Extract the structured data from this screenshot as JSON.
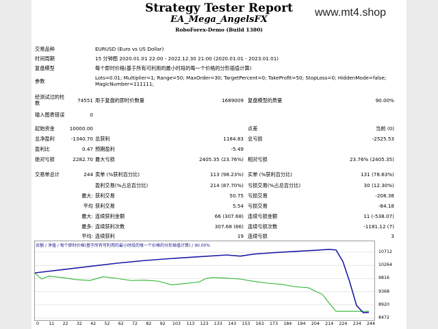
{
  "header": {
    "title": "Strategy Tester Report",
    "subtitle": "EA_Mega_AngelsFX",
    "build": "RoboForex-Demo (Build 1380)",
    "watermark": "www.mt4.shop"
  },
  "info": [
    {
      "label": "交易品种",
      "value": "EURUSD (Euro vs US Dollar)"
    },
    {
      "label": "时间周期",
      "value": "15 分钟图 2020.01.01 22:00 - 2022.12.30 21:00 (2020.01.01 - 2023.01.01)"
    },
    {
      "label": "复盘模型",
      "value": "每个即时价格(基于所有可利用的最小时段的每一个价格的分形插值计算)"
    },
    {
      "label": "参数",
      "value": "Lots=0.01; Multiplier=1; Range=50; MaxOrder=30; TargetPercent=0; TakeProfit=50; StopLoss=0; HiddenMode=false;",
      "value2": "MagicNumber=111111;"
    }
  ],
  "bars": {
    "label1": "经测试过的柱",
    "label2": "数",
    "bars_value": "74551",
    "ticks_label": "用于复盘的即时价数量",
    "ticks_value": "1689009",
    "quality_label": "复盘模型的质量",
    "quality_value": "90.00%",
    "mismatch_label": "输入图表错误",
    "mismatch_value": "0"
  },
  "stats": {
    "deposit_label": "起始资金",
    "deposit_value": "10000.00",
    "spread_label": "点差",
    "spread_value": "当前 (0)",
    "net_label": "总净盈利",
    "net_value": "-1340.70",
    "gross_profit_label": "总获利",
    "gross_profit_value": "1184.83",
    "gross_loss_label": "总亏损",
    "gross_loss_value": "-2525.53",
    "pf_label": "盈利比",
    "pf_value": "0.47",
    "ep_label": "预期盈利",
    "ep_value": "-5.49",
    "abs_dd_label": "绝对亏损",
    "abs_dd_value": "2282.70",
    "max_dd_label": "最大亏损",
    "max_dd_value": "2405.35 (23.76%)",
    "rel_dd_label": "相对亏损",
    "rel_dd_value": "23.76% (2405.35)"
  },
  "trades": {
    "total_label": "交易单总计",
    "total_value": "244",
    "short_label": "卖单 (%获利百分比)",
    "short_value": "113 (98.23%)",
    "long_label": "买单 (%获利百分比)",
    "long_value": "131 (78.63%)",
    "profit_trades_label": "盈利交易(%占总百分比)",
    "profit_trades_value": "214 (87.70%)",
    "loss_trades_label": "亏损交易(%占总百分比)",
    "loss_trades_value": "30 (12.30%)",
    "rows": [
      {
        "prefix": "最大:",
        "l1": "获利交易",
        "v1": "50.75",
        "l2": "亏损交易",
        "v2": "-208.38"
      },
      {
        "prefix": "平均",
        "l1": "获利交易",
        "v1": "5.54",
        "l2": "亏损交易",
        "v2": "-84.18"
      },
      {
        "prefix": "最大:",
        "l1": "连续获利金额",
        "v1": "66 (307.68)",
        "l2": "连续亏损金额",
        "v2": "11 (-538.07)"
      },
      {
        "prefix": "最多:",
        "l1": "连续获利次数",
        "v1": "307.68 (66)",
        "l2": "连续亏损次数",
        "v2": "-1181.12 (7)"
      },
      {
        "prefix": "平均:",
        "l1": "连续获利",
        "v1": "19",
        "l2": "连续亏损",
        "v2": "3"
      }
    ]
  },
  "chart_legend": "余额 / 净值 / 每个即时价格(基于所有可利用的最小时段的每一个价格的分形插值计算) / 90.00%",
  "colors": {
    "balance": "#1a1aa6",
    "equity": "#2db52d"
  },
  "chart_data": {
    "type": "line",
    "x_ticks": [
      "0",
      "11",
      "22",
      "32",
      "42",
      "52",
      "62",
      "72",
      "82",
      "92",
      "103",
      "113",
      "123",
      "133",
      "143",
      "153",
      "163",
      "173",
      "184",
      "194",
      "204",
      "214",
      "224",
      "234",
      "244"
    ],
    "y_ticks": [
      "10712",
      "10264",
      "9816",
      "9368",
      "8920",
      "8472"
    ],
    "ylim": [
      8472,
      10900
    ],
    "xlim": [
      0,
      248
    ],
    "series": [
      {
        "name": "",
        "x": [
          0,
          20,
          40,
          60,
          80,
          100,
          120,
          140,
          150,
          160,
          175,
          190,
          205,
          215,
          220,
          225,
          230,
          235,
          240,
          244
        ],
        "values": [
          10010,
          10120,
          10230,
          10340,
          10430,
          10500,
          10560,
          10620,
          10580,
          10650,
          10700,
          10740,
          10780,
          10810,
          10790,
          10400,
          9700,
          8900,
          8650,
          8670
        ]
      },
      {
        "name": "",
        "x": [
          0,
          5,
          10,
          20,
          30,
          40,
          50,
          60,
          70,
          80,
          90,
          100,
          110,
          120,
          125,
          130,
          140,
          150,
          160,
          170,
          180,
          190,
          200,
          205,
          210,
          215,
          220,
          225,
          230,
          235,
          244
        ],
        "values": [
          10000,
          9800,
          9900,
          9850,
          9780,
          9750,
          9880,
          9820,
          9750,
          9760,
          9730,
          9600,
          9650,
          9700,
          9820,
          9850,
          9830,
          9800,
          9720,
          9660,
          9620,
          9540,
          9500,
          9380,
          9280,
          8980,
          8700,
          8700,
          8700,
          8700,
          8700
        ]
      }
    ]
  }
}
